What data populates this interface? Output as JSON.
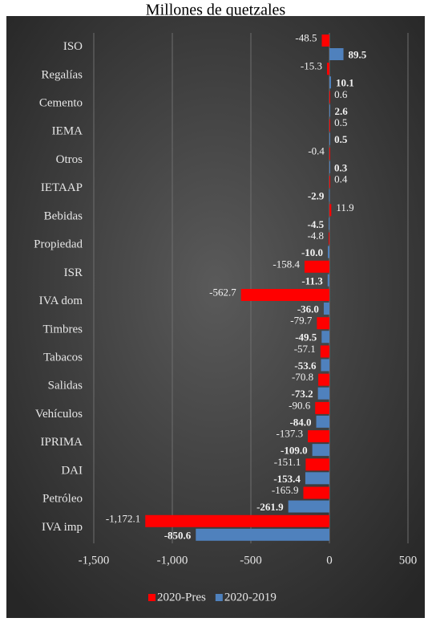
{
  "chart_data": {
    "type": "bar",
    "orientation": "horizontal",
    "title": "Millones de quetzales",
    "categories": [
      "ISO",
      "Regalías",
      "Cemento",
      "IEMA",
      "Otros",
      "IETAAP",
      "Bebidas",
      "Propiedad",
      "ISR",
      "IVA dom",
      "Timbres",
      "Tabacos",
      "Salidas",
      "Vehículos",
      "IPRIMA",
      "DAI",
      "Petróleo",
      "IVA imp"
    ],
    "series": [
      {
        "name": "2020-Pres",
        "color": "#ff0000",
        "values": [
          -48.5,
          -15.3,
          0.6,
          0.5,
          -0.4,
          0.4,
          11.9,
          -4.8,
          -158.4,
          -562.7,
          -79.7,
          -57.1,
          -70.8,
          -90.6,
          -137.3,
          -151.1,
          -165.9,
          -1172.1
        ],
        "value_labels": [
          "-48.5",
          "-15.3",
          "0.6",
          "0.5",
          "-0.4",
          "0.4",
          "11.9",
          "-4.8",
          "-158.4",
          "-562.7",
          "-79.7",
          "-57.1",
          "-70.8",
          "-90.6",
          "-137.3",
          "-151.1",
          "-165.9",
          "-1,172.1"
        ]
      },
      {
        "name": "2020-2019",
        "color": "#4f81bd",
        "values": [
          89.5,
          10.1,
          2.6,
          0.5,
          0.3,
          -2.9,
          -4.5,
          -10.0,
          -11.3,
          -36.0,
          -49.5,
          -53.6,
          -73.2,
          -84.0,
          -109.0,
          -153.4,
          -261.9,
          -850.6
        ],
        "value_labels": [
          "89.5",
          "10.1",
          "2.6",
          "0.5",
          "0.3",
          "-2.9",
          "-4.5",
          "-10.0",
          "-11.3",
          "-36.0",
          "-49.5",
          "-53.6",
          "-73.2",
          "-84.0",
          "-109.0",
          "-153.4",
          "-261.9",
          "-850.6"
        ]
      }
    ],
    "xlim": [
      -1500,
      500
    ],
    "xticks": [
      {
        "value": -1500,
        "label": "-1,500"
      },
      {
        "value": -1000,
        "label": "-1,000"
      },
      -500,
      0,
      500
    ],
    "grid": true,
    "legend": "bottom"
  }
}
